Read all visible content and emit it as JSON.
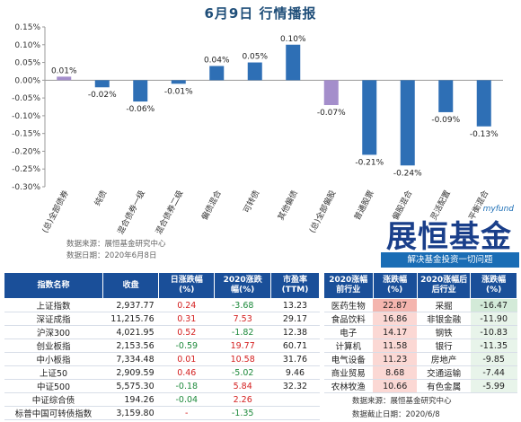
{
  "title": "6月9日  行情播报",
  "chart_data": {
    "type": "bar",
    "categories": [
      "(总)全部债券",
      "纯债",
      "混合债券一级",
      "混合债券二级",
      "偏债混合",
      "可转债",
      "其他偏债",
      "(总)全部偏股",
      "普通股票",
      "偏股混合",
      "灵活配置",
      "平衡混合"
    ],
    "values": [
      0.01,
      -0.02,
      -0.06,
      -0.01,
      0.04,
      0.05,
      0.1,
      -0.07,
      -0.21,
      -0.24,
      -0.09,
      -0.13
    ],
    "value_labels": [
      "0.01%",
      "-0.02%",
      "-0.06%",
      "-0.01%",
      "0.04%",
      "0.05%",
      "0.10%",
      "-0.07%",
      "-0.21%",
      "-0.24%",
      "-0.09%",
      "-0.13%"
    ],
    "colors": [
      "#a48ecb",
      "#2e6fb5",
      "#2e6fb5",
      "#2e6fb5",
      "#2e6fb5",
      "#2e6fb5",
      "#2e6fb5",
      "#a48ecb",
      "#2e6fb5",
      "#2e6fb5",
      "#2e6fb5",
      "#2e6fb5"
    ],
    "ylim": [
      -0.3,
      0.15
    ],
    "yticks": [
      "0.15%",
      "0.10%",
      "0.05%",
      "0.00%",
      "-0.05%",
      "-0.10%",
      "-0.15%",
      "-0.20%",
      "-0.25%",
      "-0.30%"
    ],
    "ytick_values": [
      0.15,
      0.1,
      0.05,
      0.0,
      -0.05,
      -0.1,
      -0.15,
      -0.2,
      -0.25,
      -0.3
    ],
    "grid": false
  },
  "source": {
    "line1": "数据来源：展恒基金研究中心",
    "line2": "数据日期：2020年6月8日"
  },
  "brand": {
    "tag": "myfund",
    "name": "展恒基金",
    "slogan": "解决基金投资一切问题"
  },
  "index_table": {
    "headers": [
      "指数名称",
      "收盘",
      "日涨跌幅\n(%)",
      "2020涨跌\n幅(%)",
      "市盈率\n(TTM)"
    ],
    "rows": [
      {
        "name": "上证指数",
        "close": "2,937.77",
        "day": "0.24",
        "ytd": "-3.68",
        "pe": "13.23",
        "day_sign": "pos",
        "ytd_sign": "neg"
      },
      {
        "name": "深证成指",
        "close": "11,215.76",
        "day": "0.31",
        "ytd": "7.53",
        "pe": "29.17",
        "day_sign": "pos",
        "ytd_sign": "pos"
      },
      {
        "name": "沪深300",
        "close": "4,021.95",
        "day": "0.52",
        "ytd": "-1.82",
        "pe": "12.38",
        "day_sign": "pos",
        "ytd_sign": "neg"
      },
      {
        "name": "创业板指",
        "close": "2,153.56",
        "day": "-0.59",
        "ytd": "19.77",
        "pe": "60.71",
        "day_sign": "neg",
        "ytd_sign": "pos"
      },
      {
        "name": "中小板指",
        "close": "7,334.48",
        "day": "0.01",
        "ytd": "10.58",
        "pe": "31.76",
        "day_sign": "pos",
        "ytd_sign": "pos"
      },
      {
        "name": "上证50",
        "close": "2,909.59",
        "day": "0.46",
        "ytd": "-5.02",
        "pe": "9.46",
        "day_sign": "pos",
        "ytd_sign": "neg"
      },
      {
        "name": "中证500",
        "close": "5,575.30",
        "day": "-0.18",
        "ytd": "5.84",
        "pe": "32.32",
        "day_sign": "neg",
        "ytd_sign": "pos"
      },
      {
        "name": "中证综合债",
        "close": "194.26",
        "day": "-0.04",
        "ytd": "2.26",
        "pe": "",
        "day_sign": "neg",
        "ytd_sign": "pos"
      },
      {
        "name": "标普中国可转债指数",
        "close": "3,159.80",
        "day": "-",
        "ytd": "-1.35",
        "pe": "",
        "day_sign": "pos",
        "ytd_sign": "neg"
      }
    ]
  },
  "industry_table": {
    "headers": [
      "2020涨幅\n前行业",
      "涨跌幅\n(%)",
      "2020涨幅后\n后行业",
      "涨跌幅\n(%)"
    ],
    "rows": [
      {
        "top": "医药生物",
        "top_val": "22.87",
        "bot": "采掘",
        "bot_val": "-16.47"
      },
      {
        "top": "食品饮料",
        "top_val": "16.86",
        "bot": "非银金融",
        "bot_val": "-11.90"
      },
      {
        "top": "电子",
        "top_val": "14.17",
        "bot": "钢铁",
        "bot_val": "-10.83"
      },
      {
        "top": "计算机",
        "top_val": "11.58",
        "bot": "银行",
        "bot_val": "-11.35"
      },
      {
        "top": "电气设备",
        "top_val": "11.23",
        "bot": "房地产",
        "bot_val": "-9.85"
      },
      {
        "top": "商业贸易",
        "top_val": "8.68",
        "bot": "交通运输",
        "bot_val": "-7.44"
      },
      {
        "top": "农林牧渔",
        "top_val": "10.66",
        "bot": "有色金属",
        "bot_val": "-5.99"
      }
    ],
    "source": "数据来源：展恒基金研究中心",
    "date": "数据截止日期：2020/6/8"
  }
}
